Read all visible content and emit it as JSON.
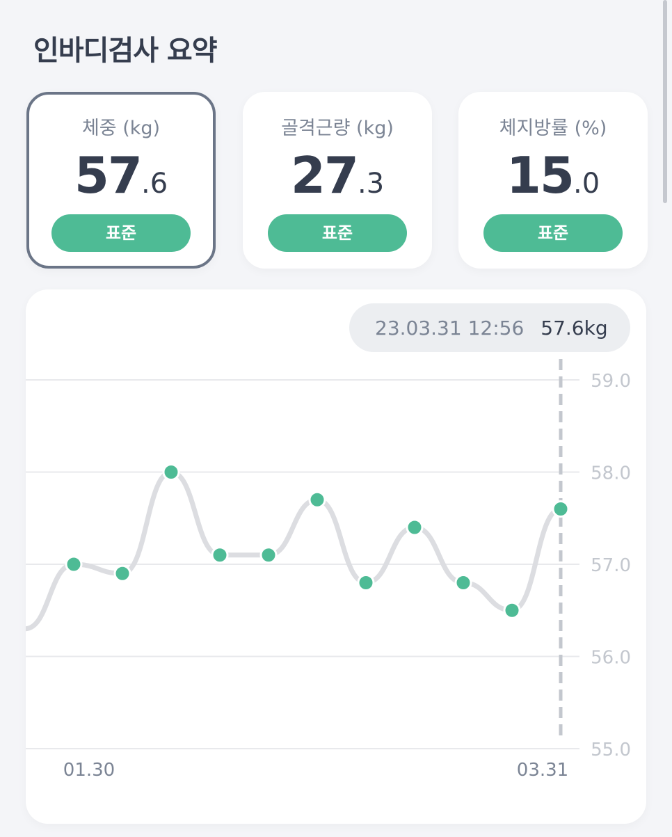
{
  "page": {
    "title": "인바디검사 요약"
  },
  "cards": [
    {
      "label": "체중 (kg)",
      "int": "57",
      "dec": ".6",
      "status": "표준",
      "selected": true
    },
    {
      "label": "골격근량 (kg)",
      "int": "27",
      "dec": ".3",
      "status": "표준",
      "selected": false
    },
    {
      "label": "체지방률 (%)",
      "int": "15",
      "dec": ".0",
      "status": "표준",
      "selected": false
    }
  ],
  "tooltip": {
    "timestamp": "23.03.31 12:56",
    "value": "57.6kg"
  },
  "colors": {
    "accent": "#4ebb95",
    "text": "#353d4e",
    "muted": "#7b8494",
    "line": "#dcdde1",
    "grid": "#e8e9ec",
    "axis_label": "#c3c7ce"
  },
  "chart_data": {
    "type": "line",
    "y_ticks": [
      "59.0",
      "58.0",
      "57.0",
      "56.0",
      "55.0"
    ],
    "ylim": [
      55,
      59
    ],
    "x_tick_labels": [
      {
        "text": "01.30",
        "index": 1
      },
      {
        "text": "03.31",
        "index": 11
      }
    ],
    "values": [
      56.3,
      57.0,
      56.9,
      58.0,
      57.1,
      57.1,
      57.7,
      56.8,
      57.4,
      56.8,
      56.5,
      57.6
    ],
    "point_shown": [
      false,
      true,
      true,
      true,
      true,
      true,
      true,
      true,
      true,
      true,
      true,
      true
    ],
    "selected_index": 11,
    "grid": true
  }
}
